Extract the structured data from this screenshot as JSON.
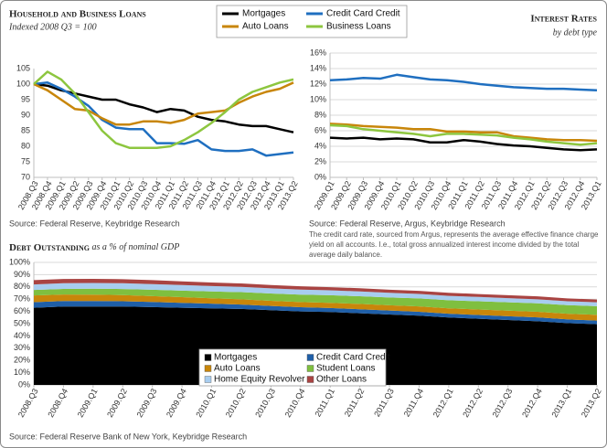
{
  "chart_data": [
    {
      "type": "line",
      "title": "Household and Business Loans",
      "subtitle": "Indexed 2008 Q3 = 100",
      "source": "Source: Federal Reserve, Keybridge Research",
      "categories": [
        "2008.Q3",
        "2008.Q4",
        "2009.Q1",
        "2009.Q2",
        "2009.Q3",
        "2009.Q4",
        "2010.Q1",
        "2010.Q2",
        "2010.Q3",
        "2010.Q4",
        "2011.Q1",
        "2011.Q2",
        "2011.Q3",
        "2011.Q4",
        "2012.Q1",
        "2012.Q2",
        "2012.Q3",
        "2012.Q4",
        "2013.Q1",
        "2013.Q2"
      ],
      "series": [
        {
          "name": "Mortgages",
          "color": "#000000",
          "values": [
            100,
            99.5,
            98,
            97,
            96,
            95,
            95,
            93.5,
            92.5,
            91,
            92,
            91.5,
            89.5,
            88.5,
            88,
            87,
            86.5,
            86.5,
            85.5,
            84.5
          ]
        },
        {
          "name": "Credit Card Credit",
          "color": "#1f6fc0",
          "values": [
            100,
            100.5,
            98.5,
            96,
            93,
            88.5,
            86,
            85.5,
            85.5,
            81,
            81,
            80.8,
            82,
            79,
            78.5,
            78.5,
            79,
            77,
            77.5,
            78
          ]
        },
        {
          "name": "Auto Loans",
          "color": "#c8860a",
          "values": [
            100,
            98,
            95,
            92,
            91.5,
            89,
            87,
            87,
            88,
            88,
            87.5,
            88.5,
            90.5,
            91,
            91.5,
            94,
            96,
            97.5,
            98.5,
            100.5
          ]
        },
        {
          "name": "Business Loans",
          "color": "#8dc63f",
          "values": [
            100,
            104,
            101.5,
            97,
            91,
            85,
            81,
            79.5,
            79.5,
            79.5,
            80,
            82,
            84.5,
            87.5,
            91,
            95,
            97.5,
            99,
            100.5,
            101.5
          ]
        }
      ],
      "ylim": [
        70,
        105
      ],
      "yticks": [
        70,
        75,
        80,
        85,
        90,
        95,
        100,
        105
      ],
      "grid": false
    },
    {
      "type": "line",
      "title": "Interest Rates",
      "subtitle": "by debt type",
      "source": "Source: Federal Reserve, Argus, Keybridge Research",
      "note": "The credit card rate, sourced from Argus, represents the average effective finance charge yield on all accounts.  I.e., total gross annualized interest income divided by the total average daily balance.",
      "categories": [
        "2009.Q1",
        "2009.Q2",
        "2009.Q3",
        "2009.Q4",
        "2010.Q1",
        "2010.Q2",
        "2010.Q3",
        "2010.Q4",
        "2011.Q1",
        "2011.Q2",
        "2011.Q3",
        "2011.Q4",
        "2012.Q1",
        "2012.Q2",
        "2012.Q3",
        "2012.Q4",
        "2013.Q1"
      ],
      "series": [
        {
          "color": "#000000",
          "values": [
            5.1,
            5.0,
            5.1,
            4.9,
            5.0,
            4.9,
            4.5,
            4.5,
            4.8,
            4.6,
            4.3,
            4.1,
            4.0,
            3.8,
            3.6,
            3.5,
            3.6
          ]
        },
        {
          "color": "#1f6fc0",
          "values": [
            12.5,
            12.6,
            12.8,
            12.7,
            13.2,
            12.9,
            12.6,
            12.5,
            12.3,
            12.0,
            11.8,
            11.6,
            11.5,
            11.4,
            11.4,
            11.3,
            11.2
          ]
        },
        {
          "color": "#c8860a",
          "values": [
            6.9,
            6.8,
            6.6,
            6.5,
            6.4,
            6.2,
            6.2,
            5.9,
            5.9,
            5.8,
            5.8,
            5.3,
            5.1,
            4.9,
            4.8,
            4.8,
            4.7
          ]
        },
        {
          "color": "#8dc63f",
          "values": [
            6.7,
            6.6,
            6.2,
            6.0,
            5.8,
            5.6,
            5.3,
            5.6,
            5.6,
            5.5,
            5.4,
            5.1,
            4.9,
            4.6,
            4.4,
            4.2,
            4.4
          ]
        }
      ],
      "ylim": [
        0,
        16
      ],
      "yticks": [
        {
          "value": 0,
          "label": "0%"
        },
        {
          "value": 2,
          "label": "2%"
        },
        {
          "value": 4,
          "label": "4%"
        },
        {
          "value": 6,
          "label": "6%"
        },
        {
          "value": 8,
          "label": "8%"
        },
        {
          "value": 10,
          "label": "10%"
        },
        {
          "value": 12,
          "label": "12%"
        },
        {
          "value": 14,
          "label": "14%"
        },
        {
          "value": 16,
          "label": "16%"
        }
      ],
      "grid": true
    },
    {
      "type": "stacked-area",
      "title": "Debt Outstanding",
      "subtitle": "as a % of nominal GDP",
      "source": "Source: Federal Reserve Bank of New York, Keybridge Research",
      "categories": [
        "2008.Q3",
        "2008.Q4",
        "2009.Q1",
        "2009.Q2",
        "2009.Q3",
        "2009.Q4",
        "2010.Q1",
        "2010.Q2",
        "2010.Q3",
        "2010.Q4",
        "2011.Q1",
        "2011.Q2",
        "2011.Q3",
        "2011.Q4",
        "2012.Q1",
        "2012.Q2",
        "2012.Q3",
        "2012.Q4",
        "2013.Q1",
        "2013.Q2"
      ],
      "series": [
        {
          "name": "Mortgages",
          "color": "#000000",
          "values": [
            63,
            64,
            64,
            64,
            63.5,
            63,
            62.5,
            62,
            61,
            60,
            59.5,
            58.5,
            57.5,
            56.5,
            55,
            54,
            53,
            52,
            50.5,
            49.5
          ]
        },
        {
          "name": "Credit Card Credit",
          "color": "#1f5fa8",
          "values": [
            4.5,
            4.5,
            4.5,
            4.3,
            4.2,
            4.0,
            3.8,
            3.6,
            3.5,
            3.4,
            3.3,
            3.3,
            3.2,
            3.2,
            3.1,
            3.1,
            3.1,
            3.1,
            3.0,
            3.0
          ]
        },
        {
          "name": "Auto Loans",
          "color": "#c8860a",
          "values": [
            5.5,
            5.3,
            5.2,
            5.0,
            4.8,
            4.6,
            4.4,
            4.3,
            4.2,
            4.2,
            4.2,
            4.3,
            4.3,
            4.4,
            4.4,
            4.5,
            4.5,
            4.6,
            4.6,
            4.7
          ]
        },
        {
          "name": "Student Loans",
          "color": "#7fbf3f",
          "values": [
            4.5,
            4.6,
            4.8,
            5.0,
            5.2,
            5.4,
            5.6,
            5.8,
            5.9,
            6.1,
            6.2,
            6.3,
            6.4,
            6.5,
            6.6,
            6.7,
            6.8,
            6.9,
            7.0,
            7.1
          ]
        },
        {
          "name": "Home Equity Revolver",
          "color": "#a8cdef",
          "values": [
            4.5,
            4.6,
            4.7,
            4.7,
            4.6,
            4.5,
            4.4,
            4.3,
            4.2,
            4.1,
            4.0,
            3.9,
            3.8,
            3.7,
            3.6,
            3.5,
            3.4,
            3.3,
            3.2,
            3.1
          ]
        },
        {
          "name": "Other Loans",
          "color": "#a94442",
          "values": [
            3.5,
            3.5,
            3.4,
            3.3,
            3.2,
            3.0,
            2.9,
            2.8,
            2.7,
            2.7,
            2.6,
            2.6,
            2.5,
            2.5,
            2.5,
            2.4,
            2.4,
            2.4,
            2.3,
            2.3
          ]
        }
      ],
      "ylim": [
        0,
        100
      ],
      "yticks": [
        {
          "value": 0,
          "label": "0%"
        },
        {
          "value": 10,
          "label": "10%"
        },
        {
          "value": 20,
          "label": "20%"
        },
        {
          "value": 30,
          "label": "30%"
        },
        {
          "value": 40,
          "label": "40%"
        },
        {
          "value": 50,
          "label": "50%"
        },
        {
          "value": 60,
          "label": "60%"
        },
        {
          "value": 70,
          "label": "70%"
        },
        {
          "value": 80,
          "label": "80%"
        },
        {
          "value": 90,
          "label": "90%"
        },
        {
          "value": 100,
          "label": "100%"
        }
      ],
      "grid": true
    }
  ]
}
